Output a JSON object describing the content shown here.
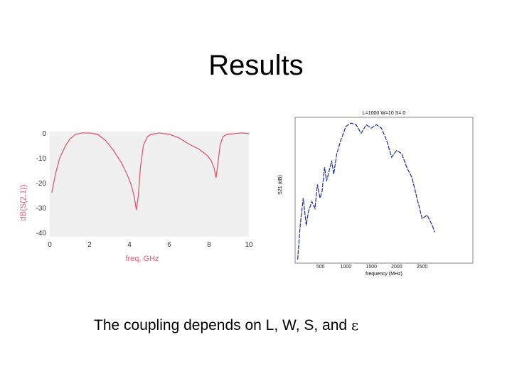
{
  "slide": {
    "title": "Results",
    "caption_text": "The coupling depends on L, W, S, and ",
    "caption_symbol": "ε"
  },
  "chart_data": [
    {
      "type": "line",
      "title": "",
      "xlabel": "freq, GHz",
      "ylabel": "dB(S(2,1))",
      "xlim": [
        0,
        10
      ],
      "ylim": [
        -40,
        0
      ],
      "xticks": [
        "0",
        "2",
        "4",
        "6",
        "8",
        "10"
      ],
      "yticks": [
        "0",
        "-10",
        "-20",
        "-30",
        "-40"
      ],
      "grid": false,
      "color": "#e05a70",
      "series": [
        {
          "x": [
            0.1,
            0.3,
            0.5,
            0.8,
            1.0,
            1.3,
            1.6,
            2.0,
            2.4,
            2.8,
            3.2,
            3.6,
            3.9,
            4.1,
            4.25,
            4.35,
            4.45,
            4.55,
            4.7,
            4.9,
            5.1,
            5.5,
            6.0,
            6.5,
            7.0,
            7.5,
            7.9,
            8.1,
            8.25,
            8.35,
            8.45,
            8.55,
            8.7,
            8.9,
            9.2,
            9.6,
            10.0
          ],
          "y": [
            -24,
            -16,
            -10,
            -5,
            -2.5,
            -0.5,
            0,
            0,
            -0.5,
            -3,
            -7,
            -12,
            -17,
            -21,
            -26,
            -31,
            -25,
            -14,
            -5,
            -1.5,
            -0.5,
            0,
            -0.5,
            -2,
            -4.5,
            -6.5,
            -9,
            -11,
            -14,
            -18,
            -12,
            -5,
            -1.5,
            -0.5,
            -0.3,
            0,
            -0.2
          ]
        }
      ]
    },
    {
      "type": "line",
      "title": "L=1000 W=10 S= 0",
      "xlabel": "frequency (MHz)",
      "ylabel": "S21 (dB)",
      "xlim": [
        0,
        3500
      ],
      "ylim": [
        -40,
        0
      ],
      "xticks": [
        "500",
        "1000",
        "1500",
        "2000",
        "2500"
      ],
      "grid": false,
      "color": "#1a2a9c",
      "series": [
        {
          "x": [
            50,
            100,
            160,
            220,
            260,
            330,
            390,
            440,
            490,
            530,
            580,
            620,
            670,
            720,
            760,
            820,
            900,
            1000,
            1100,
            1200,
            1300,
            1400,
            1500,
            1600,
            1700,
            1800,
            1900,
            2000,
            2100,
            2200,
            2300,
            2400,
            2500,
            2600,
            2700,
            2750
          ],
          "y": [
            -40,
            -30,
            -22,
            -30,
            -26,
            -23,
            -25,
            -18,
            -22,
            -20,
            -13,
            -17,
            -14,
            -11,
            -15,
            -9,
            -5,
            -1,
            0,
            -0.5,
            -3,
            -0.5,
            -1.5,
            -0.5,
            -1.5,
            -5,
            -10,
            -8,
            -9,
            -13,
            -16,
            -22,
            -28,
            -27,
            -30,
            -32
          ]
        }
      ]
    }
  ]
}
